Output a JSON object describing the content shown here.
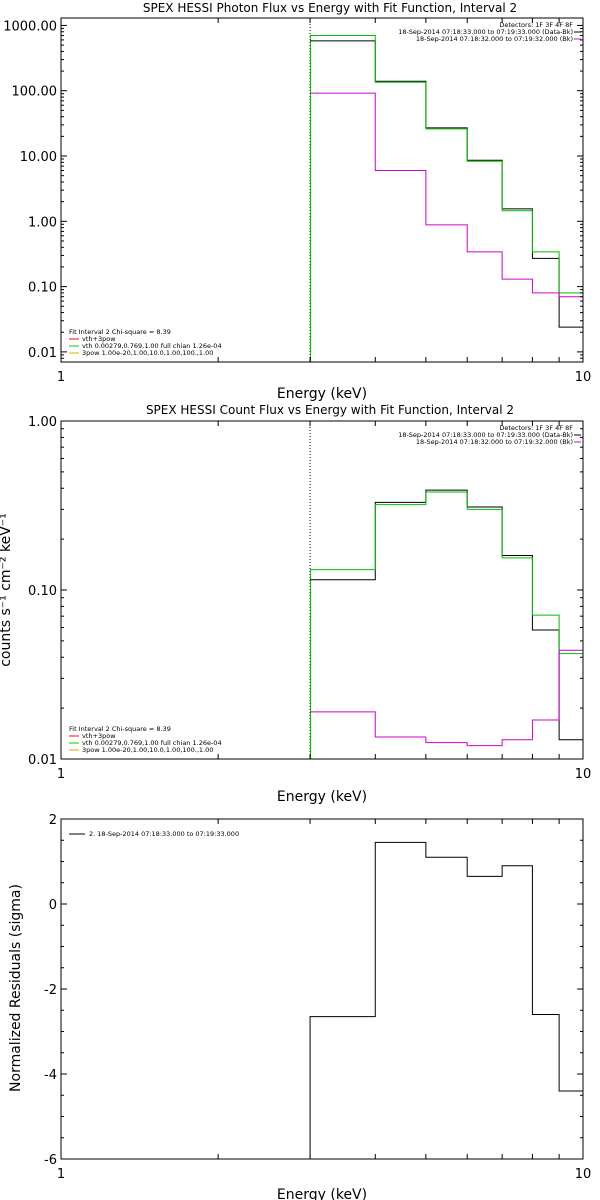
{
  "chart_data": [
    {
      "type": "line",
      "id": "photon",
      "title": "SPEX HESSI Photon Flux vs Energy with Fit Function, Interval 2",
      "xlabel": "Energy (keV)",
      "ylabel": "",
      "xscale": "log",
      "yscale": "log",
      "xlim": [
        1,
        10
      ],
      "ylim": [
        0.007,
        1300
      ],
      "xticks": [
        {
          "v": 1,
          "label": "1"
        },
        {
          "v": 10,
          "label": "10"
        }
      ],
      "yticks": [
        {
          "v": 1000,
          "label": "1000.00"
        },
        {
          "v": 100,
          "label": "100.00"
        },
        {
          "v": 10,
          "label": "10.00"
        },
        {
          "v": 1,
          "label": "1.00"
        },
        {
          "v": 0.1,
          "label": "0.10"
        },
        {
          "v": 0.01,
          "label": "0.01"
        }
      ],
      "vline": {
        "x": 3.0,
        "color": "#00c000"
      },
      "legend_top": [
        "Detectors: 1F 3F 4F 8F",
        "18-Sep-2014 07:18:33.000 to 07:19:33.000 (Data-Bk)",
        "18-Sep-2014 07:18:32.000 to 07:19:32.000 (Bk)"
      ],
      "legend_top_colors": [
        "",
        "#000000",
        "#d000d0"
      ],
      "legend_bottom_title": "Fit Interval 2   Chi-square = 8.39",
      "legend_bottom": [
        {
          "label": "vth+3pow",
          "color": "#ff0000"
        },
        {
          "label": "vth 0.00279,0.769,1.00  full chian 1.26e-04",
          "color": "#00d000"
        },
        {
          "label": "3pow 1.00e-20,1.00,10.0,1.00,100.,1.00",
          "color": "#e0b000"
        }
      ],
      "edges": [
        3.0,
        4.0,
        5.0,
        6.0,
        7.0,
        8.0,
        9.0,
        10.0
      ],
      "series": [
        {
          "name": "Data-Bk",
          "color": "#000000",
          "values": [
            580,
            140,
            27,
            8.6,
            1.55,
            0.27,
            0.024
          ]
        },
        {
          "name": "vth+3pow",
          "color": "#00c000",
          "values": [
            700,
            135,
            26,
            8.3,
            1.45,
            0.34,
            0.08
          ]
        },
        {
          "name": "Bk",
          "color": "#d000d0",
          "values": [
            92,
            6.0,
            0.88,
            0.34,
            0.13,
            0.08,
            0.07
          ]
        }
      ]
    },
    {
      "type": "line",
      "id": "count",
      "title": "SPEX HESSI Count Flux vs Energy with Fit Function, Interval 2",
      "xlabel": "Energy (keV)",
      "ylabel": "counts s⁻¹ cm⁻² keV⁻¹",
      "xscale": "log",
      "yscale": "log",
      "xlim": [
        1,
        10
      ],
      "ylim": [
        0.01,
        1.0
      ],
      "xticks": [
        {
          "v": 1,
          "label": "1"
        },
        {
          "v": 10,
          "label": "10"
        }
      ],
      "yticks": [
        {
          "v": 1,
          "label": "1.00"
        },
        {
          "v": 0.1,
          "label": "0.10"
        },
        {
          "v": 0.01,
          "label": "0.01"
        }
      ],
      "vline": {
        "x": 3.0,
        "color": "#00c000"
      },
      "legend_top": [
        "Detectors: 1F 3F 4F 8F",
        "18-Sep-2014 07:18:33.000 to 07:19:33.000 (Data-Bk)",
        "18-Sep-2014 07:18:32.000 to 07:19:32.000 (Bk)"
      ],
      "legend_top_colors": [
        "",
        "#000000",
        "#d000d0"
      ],
      "legend_bottom_title": "Fit Interval 2   Chi-square = 8.39",
      "legend_bottom": [
        {
          "label": "vth+3pow",
          "color": "#ff0000"
        },
        {
          "label": "vth 0.00279,0.769,1.00  full chian 1.26e-04",
          "color": "#00d000"
        },
        {
          "label": "3pow 1.00e-20,1.00,10.0,1.00,100.,1.00",
          "color": "#e0b000"
        }
      ],
      "edges": [
        3.0,
        4.0,
        5.0,
        6.0,
        7.0,
        8.0,
        9.0,
        10.0
      ],
      "series": [
        {
          "name": "Data-Bk",
          "color": "#000000",
          "values": [
            0.115,
            0.33,
            0.39,
            0.31,
            0.16,
            0.058,
            0.013
          ]
        },
        {
          "name": "vth+3pow",
          "color": "#00c000",
          "values": [
            0.132,
            0.32,
            0.38,
            0.3,
            0.155,
            0.071,
            0.042
          ]
        },
        {
          "name": "Bk",
          "color": "#d000d0",
          "values": [
            0.019,
            0.0135,
            0.0125,
            0.012,
            0.013,
            0.017,
            0.044
          ]
        }
      ]
    },
    {
      "type": "line",
      "id": "resid",
      "title": "",
      "xlabel": "Energy (keV)",
      "ylabel": "Normalized Residuals (sigma)",
      "xscale": "log",
      "yscale": "linear",
      "xlim": [
        1,
        10
      ],
      "ylim": [
        -6,
        2
      ],
      "xticks": [
        {
          "v": 1,
          "label": "1"
        },
        {
          "v": 10,
          "label": "10"
        }
      ],
      "yticks": [
        {
          "v": 2,
          "label": "2"
        },
        {
          "v": 0,
          "label": "0"
        },
        {
          "v": -2,
          "label": "-2"
        },
        {
          "v": -4,
          "label": "-4"
        },
        {
          "v": -6,
          "label": "-6"
        }
      ],
      "legend_top": [
        "2. 18-Sep-2014 07:18:33.000 to 07:19:33.000"
      ],
      "edges": [
        3.0,
        4.0,
        5.0,
        6.0,
        7.0,
        8.0,
        9.0,
        10.0
      ],
      "series": [
        {
          "name": "",
          "color": "#000000",
          "values": [
            -2.65,
            1.45,
            1.1,
            0.65,
            0.9,
            -2.6,
            -4.4
          ]
        }
      ]
    }
  ]
}
